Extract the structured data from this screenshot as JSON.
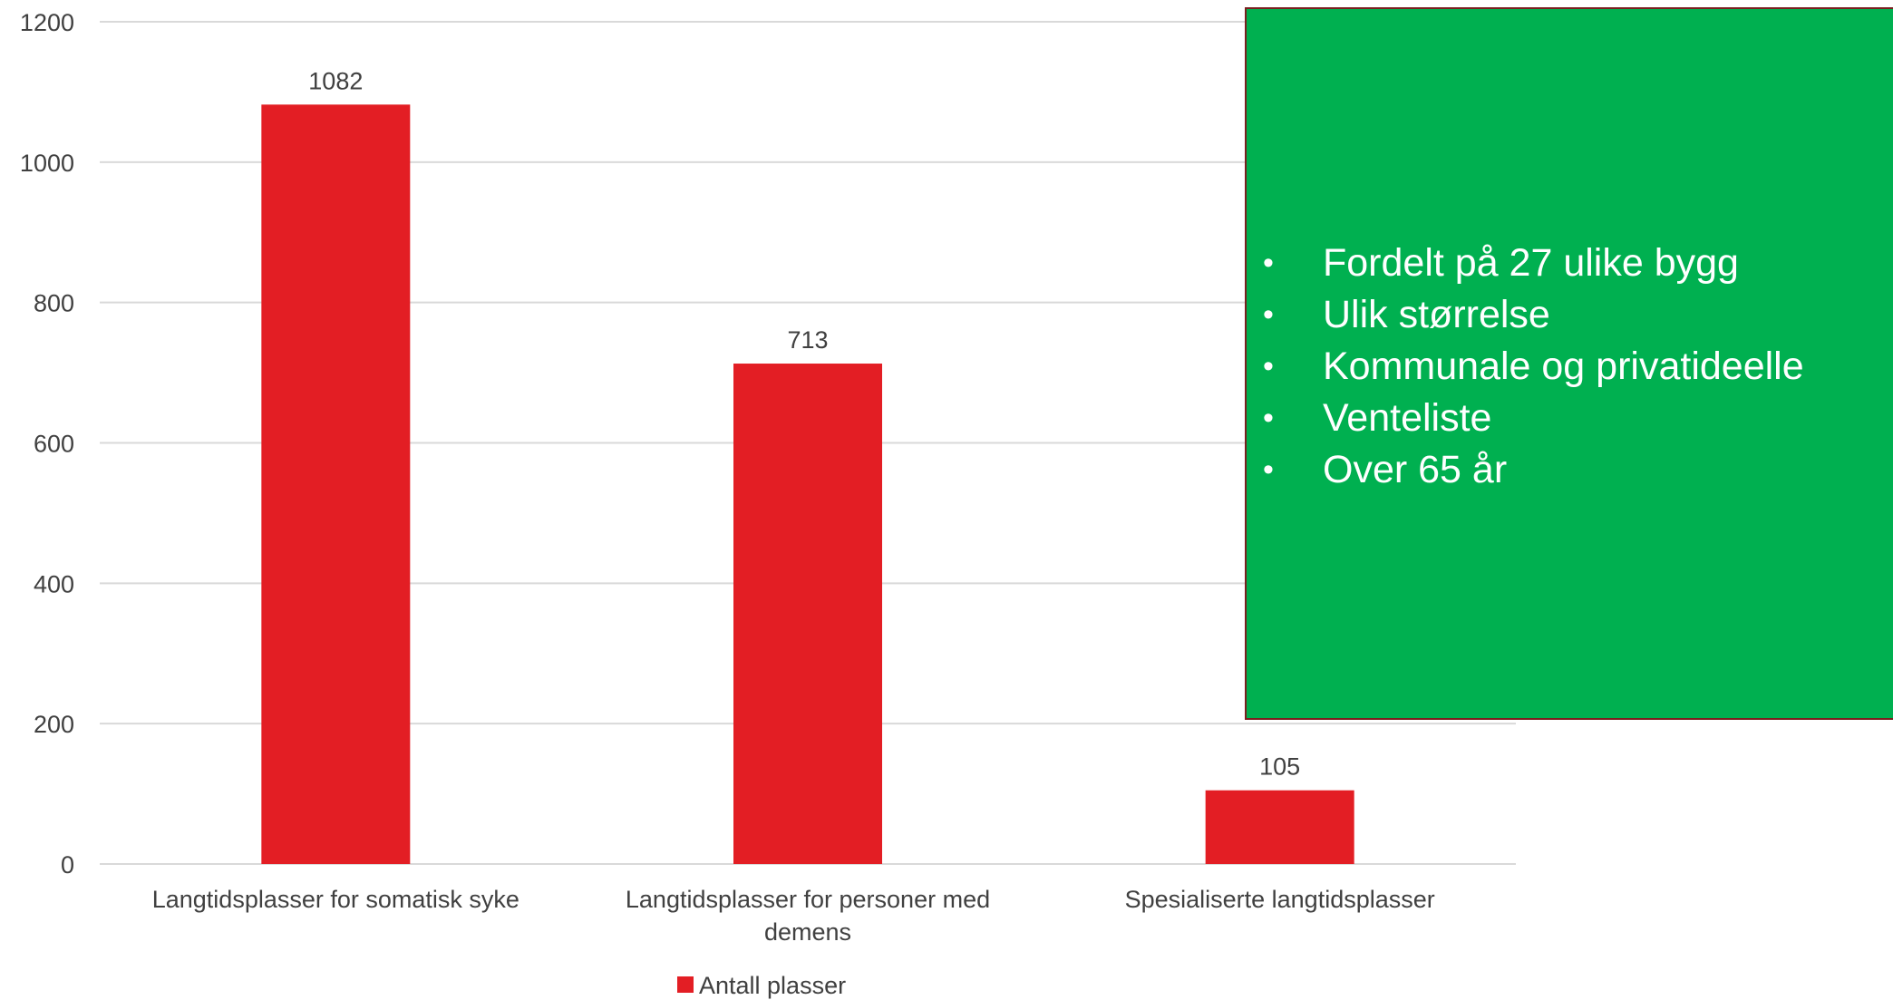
{
  "chart_data": {
    "type": "bar",
    "categories": [
      [
        "Langtidsplasser for somatisk syke"
      ],
      [
        "Langtidsplasser for personer med",
        "demens"
      ],
      [
        "Spesialiserte langtidsplasser"
      ]
    ],
    "series": [
      {
        "name": "Antall plasser",
        "values": [
          1082,
          713,
          105
        ],
        "color": "#e31e24"
      }
    ],
    "data_labels": [
      "1082",
      "713",
      "105"
    ],
    "y_ticks": [
      "0",
      "200",
      "400",
      "600",
      "800",
      "1000",
      "1200"
    ],
    "ylim": [
      0,
      1200
    ],
    "grid": true,
    "legend_position": "bottom",
    "title": "",
    "xlabel": "",
    "ylabel": ""
  },
  "callout": {
    "background": "#00b050",
    "bullet_symbol": "•",
    "items": [
      "Fordelt på 27 ulike bygg",
      "Ulik størrelse",
      "Kommunale og privatideelle",
      "Venteliste",
      "Over 65 år"
    ]
  },
  "colors": {
    "bar": "#e31e24",
    "grid": "#d9d9d9",
    "text": "#404040",
    "callout": "#00b050"
  }
}
